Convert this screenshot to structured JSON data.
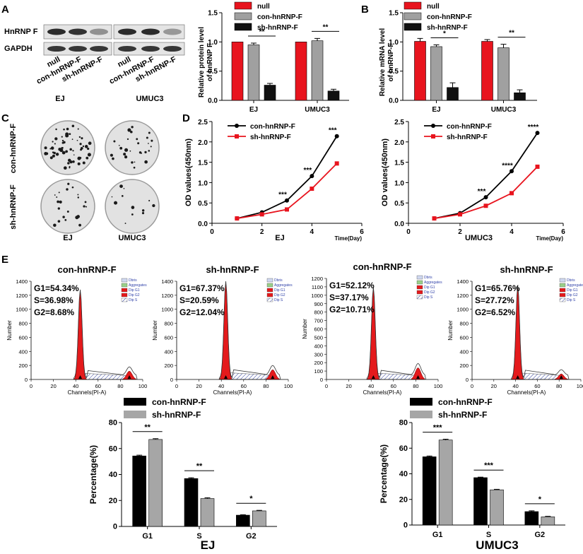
{
  "panels": {
    "A": "A",
    "B": "B",
    "C": "C",
    "D": "D",
    "E": "E"
  },
  "western": {
    "rows": [
      "HnRNP F",
      "GAPDH"
    ],
    "lanes": [
      "null",
      "con-hnRNP-F",
      "sh-hnRNP-F",
      "null",
      "con-hnRNP-F",
      "sh-hnRNP-F"
    ],
    "groups": [
      "EJ",
      "UMUC3"
    ]
  },
  "colonies": {
    "rows": [
      "con-hnRNP-F",
      "sh-hnRNP-F"
    ],
    "cols": [
      "EJ",
      "UMUC3"
    ]
  },
  "colors": {
    "null": "#e8141e",
    "con": "#a0a0a0",
    "sh": "#111111",
    "red": "#e8141e",
    "black": "#000000",
    "grey": "#a6a6a6",
    "fill": "#e41a1c"
  },
  "chart_data": [
    {
      "id": "protein",
      "type": "bar",
      "ylabel": "Relative protein level of hnRNP F",
      "ylim": [
        0,
        1.5
      ],
      "yticks": [
        "0.0",
        "0.5",
        "1.0",
        "1.5"
      ],
      "categories": [
        "EJ",
        "UMUC3"
      ],
      "series": [
        {
          "name": "null",
          "values": [
            1.0,
            1.0
          ],
          "err": [
            0,
            0
          ]
        },
        {
          "name": "con-hnRNP-F",
          "values": [
            0.95,
            1.02
          ],
          "err": [
            0.03,
            0.04
          ]
        },
        {
          "name": "sh-hnRNP-F",
          "values": [
            0.26,
            0.16
          ],
          "err": [
            0.03,
            0.03
          ]
        }
      ],
      "sig": [
        "**",
        "**"
      ]
    },
    {
      "id": "mrna",
      "type": "bar",
      "ylabel": "Relative mRNA level of hnRNP-F",
      "ylim": [
        0,
        1.5
      ],
      "yticks": [
        "0.0",
        "0.5",
        "1.0",
        "1.5"
      ],
      "categories": [
        "EJ",
        "UMUC3"
      ],
      "series": [
        {
          "name": "null",
          "values": [
            1.01,
            1.01
          ],
          "err": [
            0.05,
            0.03
          ]
        },
        {
          "name": "con-hnRNP-F",
          "values": [
            0.92,
            0.9
          ],
          "err": [
            0.03,
            0.06
          ]
        },
        {
          "name": "sh-hnRNP-F",
          "values": [
            0.22,
            0.13
          ],
          "err": [
            0.08,
            0.05
          ]
        }
      ],
      "sig": [
        "*",
        "**"
      ]
    },
    {
      "id": "od_ej",
      "type": "line",
      "xlabel": "EJ",
      "xunit": "Time(Day)",
      "ylabel": "OD values(450nm)",
      "xlim": [
        0,
        6
      ],
      "ylim": [
        0,
        2.5
      ],
      "xticks": [
        "0",
        "2",
        "4",
        "6"
      ],
      "yticks": [
        "0.0",
        "0.5",
        "1.0",
        "1.5",
        "2.0",
        "2.5"
      ],
      "x": [
        1,
        2,
        3,
        4,
        5
      ],
      "series": [
        {
          "name": "con-hnRNP-F",
          "values": [
            0.12,
            0.27,
            0.56,
            1.16,
            2.14
          ]
        },
        {
          "name": "sh-hnRNP-F",
          "values": [
            0.12,
            0.22,
            0.34,
            0.85,
            1.47
          ]
        }
      ],
      "sig": {
        "x": [
          3,
          4,
          5
        ],
        "labels": [
          "***",
          "***",
          "***"
        ]
      }
    },
    {
      "id": "od_umuc3",
      "type": "line",
      "xlabel": "UMUC3",
      "xunit": "Time(Day)",
      "ylabel": "OD values(450nm)",
      "xlim": [
        0,
        6
      ],
      "ylim": [
        0,
        2.5
      ],
      "xticks": [
        "0",
        "2",
        "4",
        "6"
      ],
      "yticks": [
        "0.0",
        "0.5",
        "1.0",
        "1.5",
        "2.0",
        "2.5"
      ],
      "x": [
        1,
        2,
        3,
        4,
        5
      ],
      "series": [
        {
          "name": "con-hnRNP-F",
          "values": [
            0.12,
            0.25,
            0.64,
            1.28,
            2.22
          ]
        },
        {
          "name": "sh-hnRNP-F",
          "values": [
            0.12,
            0.22,
            0.43,
            0.74,
            1.39
          ]
        }
      ],
      "sig": {
        "x": [
          3,
          4,
          5
        ],
        "labels": [
          "***",
          "****",
          "****"
        ]
      }
    },
    {
      "id": "flow1",
      "type": "area",
      "title": "con-hnRNP-F",
      "stats": [
        "G1=54.34%",
        "S=36.98%",
        "G2=8.68%"
      ],
      "ylim": [
        0,
        1400
      ],
      "yticks": [
        "0",
        "200",
        "400",
        "600",
        "800",
        "1000",
        "1200",
        "1400"
      ],
      "g1": 44,
      "g2": 88,
      "peak": 1260,
      "peak2": 120
    },
    {
      "id": "flow2",
      "type": "area",
      "title": "sh-hnRNP-F",
      "stats": [
        "G1=67.37%",
        "S=20.59%",
        "G2=12.04%"
      ],
      "ylim": [
        0,
        1400
      ],
      "yticks": [
        "0",
        "200",
        "400",
        "600",
        "800",
        "1000",
        "1200",
        "1400"
      ],
      "g1": 44,
      "g2": 86,
      "peak": 1380,
      "peak2": 140
    },
    {
      "id": "flow3",
      "type": "area",
      "title": "con-hnRNP-F",
      "stats": [
        "G1=52.12%",
        "S=37.17%",
        "G2=10.71%"
      ],
      "ylim": [
        0,
        1200
      ],
      "yticks": [
        "0",
        "100",
        "200",
        "300",
        "400",
        "500",
        "600",
        "700",
        "800",
        "900",
        "1000",
        "1100",
        "1200"
      ],
      "g1": 42,
      "g2": 82,
      "peak": 1080,
      "peak2": 140
    },
    {
      "id": "flow4",
      "type": "area",
      "title": "sh-hnRNP-F",
      "stats": [
        "G1=65.76%",
        "S=27.72%",
        "G2=6.52%"
      ],
      "ylim": [
        0,
        1400
      ],
      "yticks": [
        "0",
        "200",
        "400",
        "600",
        "800",
        "1000",
        "1200",
        "1400"
      ],
      "g1": 42,
      "g2": 82,
      "peak": 1320,
      "peak2": 80
    },
    {
      "id": "pct_ej",
      "type": "bar",
      "title": "EJ",
      "ylabel": "Percentage(%)",
      "ylim": [
        0,
        80
      ],
      "yticks": [
        "0",
        "20",
        "40",
        "60",
        "80"
      ],
      "categories": [
        "G1",
        "S",
        "G2"
      ],
      "series": [
        {
          "name": "con-hnRNP-F",
          "values": [
            54.3,
            36.9,
            8.7
          ],
          "err": [
            0.6,
            0.6,
            0.3
          ]
        },
        {
          "name": "sh-hnRNP-F",
          "values": [
            67.0,
            21.5,
            12.0
          ],
          "err": [
            0.6,
            0.6,
            0.4
          ]
        }
      ],
      "sig": [
        "**",
        "**",
        "*"
      ]
    },
    {
      "id": "pct_umuc3",
      "type": "bar",
      "title": "UMUC3",
      "ylabel": "Percentage(%)",
      "ylim": [
        0,
        80
      ],
      "yticks": [
        "0",
        "20",
        "40",
        "60",
        "80"
      ],
      "categories": [
        "G1",
        "S",
        "G2"
      ],
      "series": [
        {
          "name": "con-hnRNP-F",
          "values": [
            53.3,
            37.0,
            10.5
          ],
          "err": [
            0.6,
            0.4,
            0.6
          ]
        },
        {
          "name": "sh-hnRNP-F",
          "values": [
            66.4,
            27.5,
            6.4
          ],
          "err": [
            0.6,
            0.4,
            0.4
          ]
        }
      ],
      "sig": [
        "***",
        "***",
        "*"
      ]
    }
  ],
  "flow_legend": [
    "Dbris",
    "Aggregates",
    "Dip G1",
    "Dip G2",
    "Dip S"
  ],
  "flow_xlabel": "Channels(PI-A)",
  "flow_ylabel": "Number",
  "flow_xticks": [
    "0",
    "20",
    "40",
    "60",
    "80",
    "100"
  ]
}
